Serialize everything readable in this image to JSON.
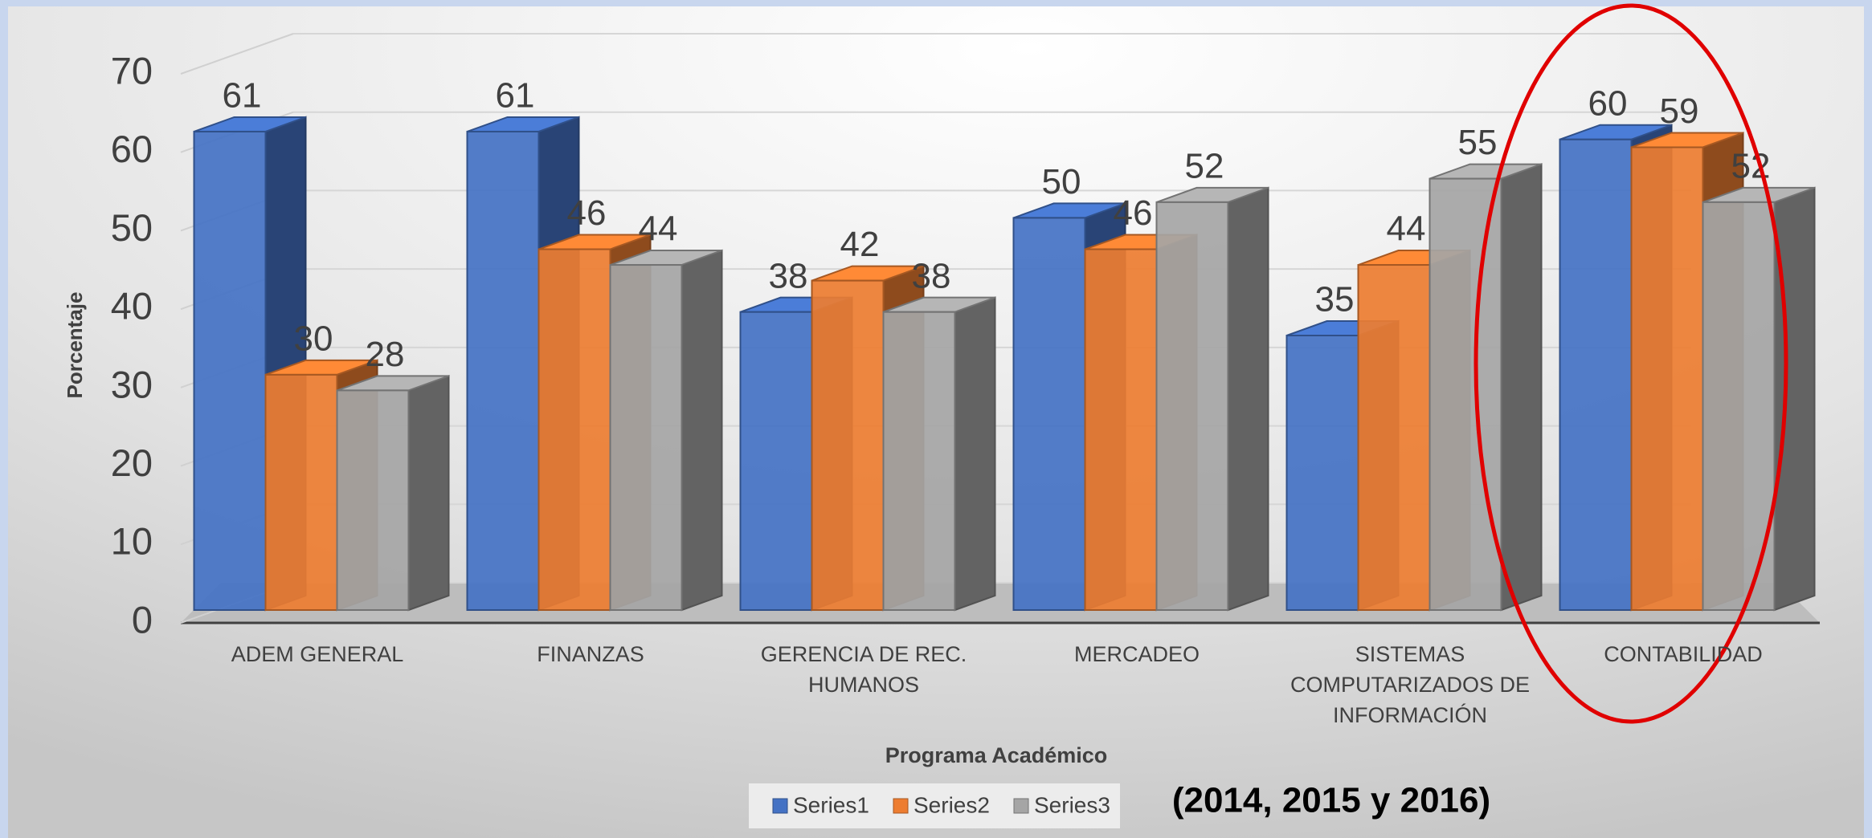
{
  "chart_data": {
    "type": "bar3d",
    "categories": [
      "ADEM GENERAL",
      "FINANZAS",
      "GERENCIA DE REC. HUMANOS",
      "MERCADEO",
      "SISTEMAS COMPUTARIZADOS DE INFORMACIÓN",
      "CONTABILIDAD"
    ],
    "series": [
      {
        "name": "Series1",
        "color": "#4472c4",
        "values": [
          61,
          61,
          38,
          50,
          35,
          60
        ]
      },
      {
        "name": "Series2",
        "color": "#ed7d31",
        "values": [
          30,
          46,
          42,
          46,
          44,
          59
        ]
      },
      {
        "name": "Series3",
        "color": "#a5a5a5",
        "values": [
          28,
          44,
          38,
          52,
          55,
          52
        ]
      }
    ],
    "ylim": [
      0,
      70
    ],
    "yticks": [
      0,
      10,
      20,
      30,
      40,
      50,
      60,
      70
    ],
    "grid": true,
    "xlabel": "Programa Académico",
    "ylabel": "Porcentaje",
    "annotation": "(2014, 2015 y 2016)",
    "legend": "bottom"
  }
}
